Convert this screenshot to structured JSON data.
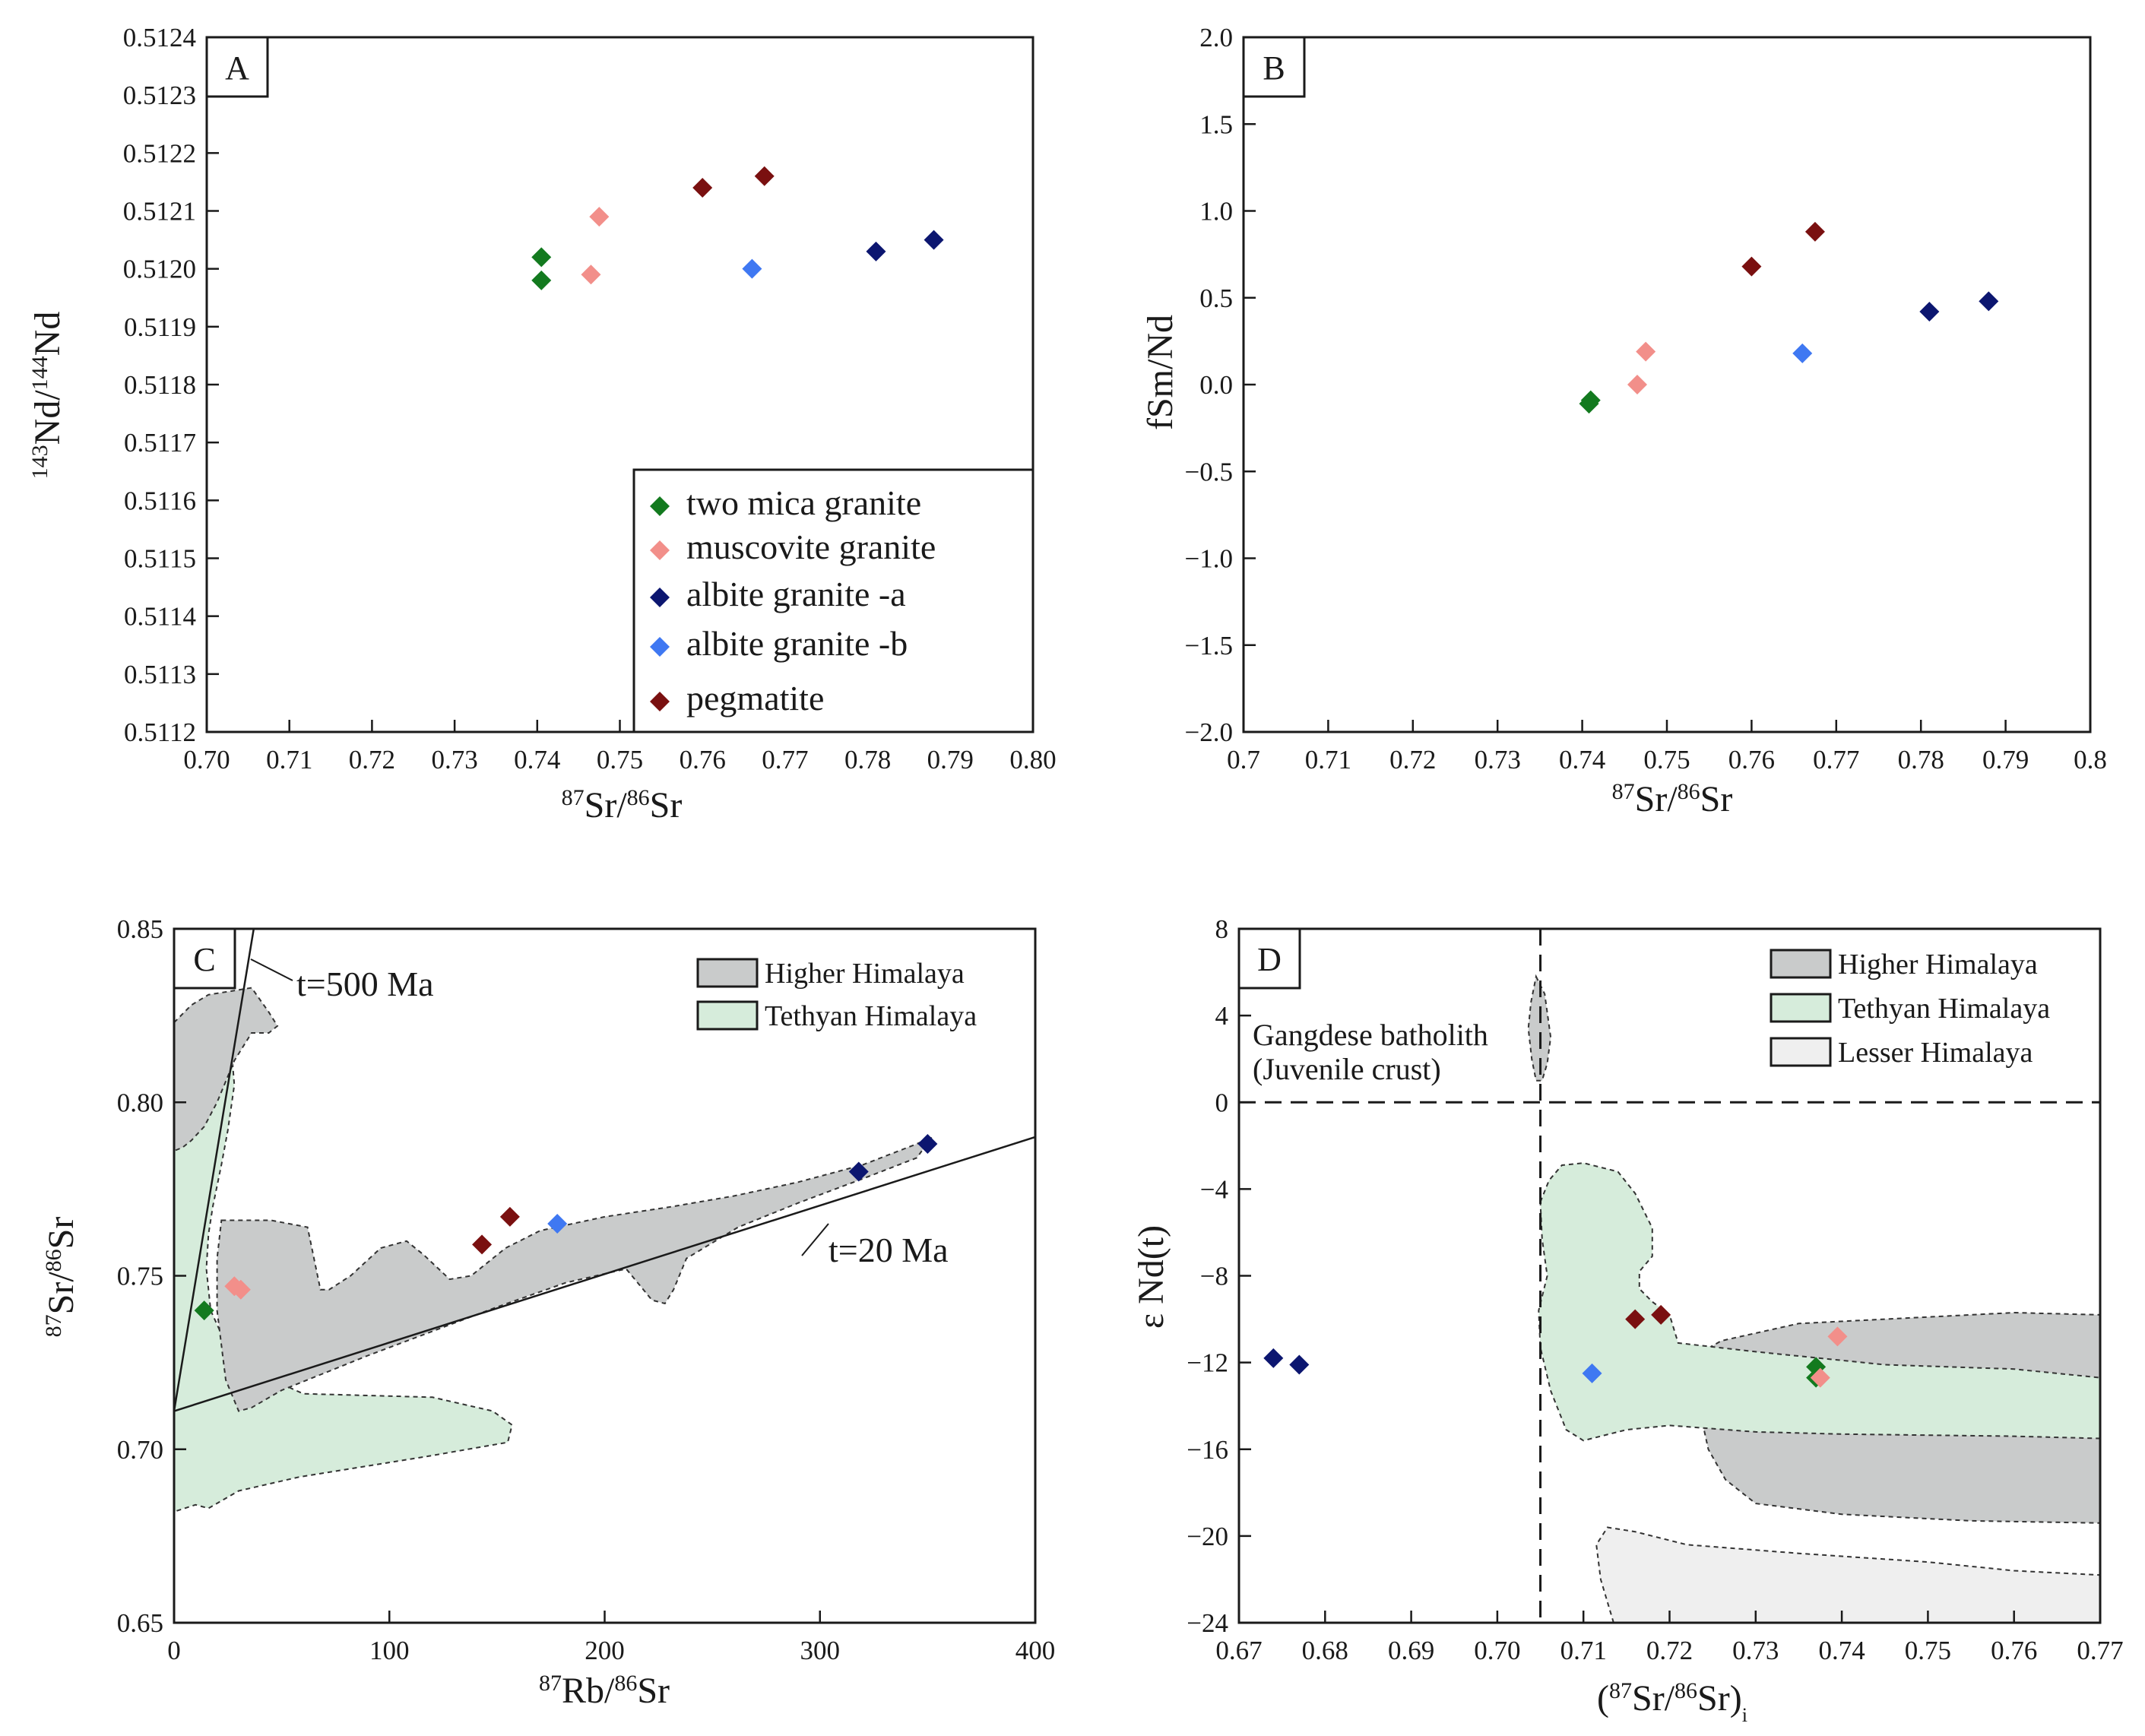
{
  "colors": {
    "two_mica": "#137a1f",
    "muscovite": "#f28f8a",
    "albite_a": "#0c1670",
    "albite_b": "#3f78f2",
    "pegmatite": "#7a1010",
    "higher_himalaya_fill": "#c9cbcb",
    "tethyan_himalaya_fill": "#d6ecdb",
    "lesser_himalaya_fill": "#efefef"
  },
  "chart_data": [
    {
      "panel": "A",
      "type": "scatter",
      "xlabel": {
        "sup1": "87",
        "t1": "Sr/",
        "sup2": "86",
        "t2": "Sr"
      },
      "ylabel": {
        "sup1": "143",
        "t1": "Nd/",
        "sup2": "144",
        "t2": "Nd"
      },
      "xlim": [
        0.7,
        0.8
      ],
      "ylim": [
        0.5112,
        0.5124
      ],
      "xticks": [
        "0.70",
        "0.71",
        "0.72",
        "0.73",
        "0.74",
        "0.75",
        "0.76",
        "0.77",
        "0.78",
        "0.79",
        "0.80"
      ],
      "yticks": [
        "0.5112",
        "0.5113",
        "0.5114",
        "0.5115",
        "0.5116",
        "0.5117",
        "0.5118",
        "0.5119",
        "0.5120",
        "0.5121",
        "0.5122",
        "0.5123",
        "0.5124"
      ],
      "legend_position": "bottom-right",
      "series": [
        {
          "name": "two mica granite",
          "color_key": "two_mica",
          "points": [
            [
              0.7405,
              0.51202
            ],
            [
              0.7405,
              0.51198
            ]
          ]
        },
        {
          "name": "muscovite granite",
          "color_key": "muscovite",
          "points": [
            [
              0.7475,
              0.51209
            ],
            [
              0.7465,
              0.51199
            ]
          ]
        },
        {
          "name": "albite granite -a",
          "color_key": "albite_a",
          "points": [
            [
              0.781,
              0.51203
            ],
            [
              0.788,
              0.51205
            ]
          ]
        },
        {
          "name": "albite granite -b",
          "color_key": "albite_b",
          "points": [
            [
              0.766,
              0.512
            ]
          ]
        },
        {
          "name": "pegmatite",
          "color_key": "pegmatite",
          "points": [
            [
              0.76,
              0.51214
            ],
            [
              0.7675,
              0.51216
            ]
          ]
        }
      ]
    },
    {
      "panel": "B",
      "type": "scatter",
      "xlabel": {
        "sup1": "87",
        "t1": "Sr/",
        "sup2": "86",
        "t2": "Sr"
      },
      "ylabel": "fSm/Nd",
      "xlim": [
        0.7,
        0.8
      ],
      "ylim": [
        -2.0,
        2.0
      ],
      "xticks": [
        "0.7",
        "0.71",
        "0.72",
        "0.73",
        "0.74",
        "0.75",
        "0.76",
        "0.77",
        "0.78",
        "0.79",
        "0.8"
      ],
      "yticks": [
        "−2.0",
        "−1.5",
        "−1.0",
        "−0.5",
        "0.0",
        "0.5",
        "1.0",
        "1.5",
        "2.0"
      ],
      "series": [
        {
          "name": "two mica granite",
          "color_key": "two_mica",
          "points": [
            [
              0.741,
              -0.09
            ],
            [
              0.7408,
              -0.11
            ]
          ]
        },
        {
          "name": "muscovite granite",
          "color_key": "muscovite",
          "points": [
            [
              0.7475,
              0.19
            ],
            [
              0.7465,
              0.0
            ]
          ]
        },
        {
          "name": "albite granite -a",
          "color_key": "albite_a",
          "points": [
            [
              0.781,
              0.42
            ],
            [
              0.788,
              0.48
            ]
          ]
        },
        {
          "name": "albite granite -b",
          "color_key": "albite_b",
          "points": [
            [
              0.766,
              0.18
            ]
          ]
        },
        {
          "name": "pegmatite",
          "color_key": "pegmatite",
          "points": [
            [
              0.76,
              0.68
            ],
            [
              0.7675,
              0.88
            ]
          ]
        }
      ]
    },
    {
      "panel": "C",
      "type": "scatter",
      "xlabel": {
        "sup1": "87",
        "t1": "Rb/",
        "sup2": "86",
        "t2": "Sr"
      },
      "ylabel": {
        "sup1": "87",
        "t1": "Sr/",
        "sup2": "86",
        "t2": "Sr"
      },
      "xlim": [
        0,
        400
      ],
      "ylim": [
        0.65,
        0.85
      ],
      "xticks": [
        "0",
        "100",
        "200",
        "300",
        "400"
      ],
      "yticks": [
        "0.65",
        "0.70",
        "0.75",
        "0.80",
        "0.85"
      ],
      "legend": [
        "Higher Himalaya",
        "Tethyan Himalaya"
      ],
      "legend_position": "top-right",
      "isochrons": [
        {
          "label": "t=500 Ma",
          "from": [
            0,
            0.711
          ],
          "to": [
            37,
            0.85
          ]
        },
        {
          "label": "t=20 Ma",
          "from": [
            0,
            0.711
          ],
          "to": [
            400,
            0.79
          ]
        }
      ],
      "regions": [
        {
          "name": "Tethyan Himalaya",
          "fill_key": "tethyan_himalaya_fill",
          "polygon": [
            [
              0,
              0.79
            ],
            [
              5,
              0.8
            ],
            [
              12,
              0.815
            ],
            [
              17,
              0.825
            ],
            [
              22,
              0.828
            ],
            [
              26,
              0.82
            ],
            [
              28,
              0.805
            ],
            [
              25,
              0.792
            ],
            [
              22,
              0.782
            ],
            [
              18,
              0.77
            ],
            [
              16,
              0.762
            ],
            [
              15,
              0.752
            ],
            [
              17,
              0.74
            ],
            [
              28,
              0.725
            ],
            [
              60,
              0.716
            ],
            [
              120,
              0.715
            ],
            [
              148,
              0.711
            ],
            [
              157,
              0.707
            ],
            [
              155,
              0.702
            ],
            [
              118,
              0.698
            ],
            [
              58,
              0.692
            ],
            [
              30,
              0.688
            ],
            [
              16,
              0.683
            ],
            [
              10,
              0.684
            ],
            [
              0,
              0.682
            ]
          ]
        },
        {
          "name": "Higher Himalaya",
          "fill_key": "higher_himalaya_fill",
          "polygon": [
            [
              0,
              0.823
            ],
            [
              8,
              0.828
            ],
            [
              16,
              0.831
            ],
            [
              26,
              0.832
            ],
            [
              36,
              0.833
            ],
            [
              44,
              0.826
            ],
            [
              48,
              0.822
            ],
            [
              44,
              0.82
            ],
            [
              36,
              0.82
            ],
            [
              28,
              0.812
            ],
            [
              20,
              0.8
            ],
            [
              14,
              0.793
            ],
            [
              8,
              0.789
            ],
            [
              4,
              0.787
            ],
            [
              0,
              0.786
            ]
          ]
        },
        {
          "name": "Higher Himalaya",
          "fill_key": "higher_himalaya_fill",
          "polygon": [
            [
              22,
              0.766
            ],
            [
              45,
              0.766
            ],
            [
              62,
              0.764
            ],
            [
              68,
              0.746
            ],
            [
              72,
              0.746
            ],
            [
              82,
              0.75
            ],
            [
              96,
              0.758
            ],
            [
              108,
              0.76
            ],
            [
              116,
              0.756
            ],
            [
              128,
              0.749
            ],
            [
              138,
              0.75
            ],
            [
              154,
              0.758
            ],
            [
              170,
              0.763
            ],
            [
              200,
              0.767
            ],
            [
              232,
              0.77
            ],
            [
              260,
              0.773
            ],
            [
              290,
              0.777
            ],
            [
              320,
              0.782
            ],
            [
              345,
              0.788
            ],
            [
              352,
              0.79
            ],
            [
              345,
              0.784
            ],
            [
              320,
              0.778
            ],
            [
              290,
              0.771
            ],
            [
              262,
              0.764
            ],
            [
              238,
              0.755
            ],
            [
              232,
              0.746
            ],
            [
              228,
              0.742
            ],
            [
              222,
              0.743
            ],
            [
              210,
              0.752
            ],
            [
              182,
              0.748
            ],
            [
              150,
              0.741
            ],
            [
              120,
              0.734
            ],
            [
              90,
              0.727
            ],
            [
              70,
              0.722
            ],
            [
              50,
              0.717
            ],
            [
              36,
              0.712
            ],
            [
              30,
              0.711
            ],
            [
              24,
              0.72
            ],
            [
              20,
              0.74
            ],
            [
              20,
              0.755
            ]
          ]
        }
      ],
      "series": [
        {
          "name": "two mica granite",
          "color_key": "two_mica",
          "points": [
            [
              14,
              0.74
            ]
          ]
        },
        {
          "name": "muscovite granite",
          "color_key": "muscovite",
          "points": [
            [
              28,
              0.747
            ],
            [
              31,
              0.746
            ]
          ]
        },
        {
          "name": "albite granite -a",
          "color_key": "albite_a",
          "points": [
            [
              318,
              0.78
            ],
            [
              350,
              0.788
            ]
          ]
        },
        {
          "name": "albite granite -b",
          "color_key": "albite_b",
          "points": [
            [
              178,
              0.765
            ]
          ]
        },
        {
          "name": "pegmatite",
          "color_key": "pegmatite",
          "points": [
            [
              143,
              0.759
            ],
            [
              156,
              0.767
            ]
          ]
        }
      ]
    },
    {
      "panel": "D",
      "type": "scatter",
      "xlabel": {
        "open": "(",
        "sup1": "87",
        "t1": "Sr/",
        "sup2": "86",
        "t2": "Sr)",
        "sub": "i"
      },
      "ylabel": "ε Nd(t)",
      "xlim": [
        0.67,
        0.77
      ],
      "ylim": [
        -24,
        8
      ],
      "xticks": [
        "0.67",
        "0.68",
        "0.69",
        "0.70",
        "0.71",
        "0.72",
        "0.73",
        "0.74",
        "0.75",
        "0.76",
        "0.77"
      ],
      "yticks": [
        "−24",
        "−20",
        "−16",
        "−12",
        "−8",
        "−4",
        "0",
        "4",
        "8"
      ],
      "legend": [
        "Higher Himalaya",
        "Tethyan Himalaya",
        "Lesser Himalaya"
      ],
      "legend_position": "top-right",
      "reference_lines": {
        "vertical_x": 0.705,
        "horizontal_y": 0
      },
      "annotations": [
        "Gangdese batholith",
        "(Juvenile crust)"
      ],
      "regions": [
        {
          "name": "Gangdese batholith",
          "fill_key": "higher_himalaya_fill",
          "polygon": [
            [
              0.7045,
              5.8
            ],
            [
              0.7055,
              5.0
            ],
            [
              0.7062,
              3.0
            ],
            [
              0.7058,
              1.8
            ],
            [
              0.7052,
              1.0
            ],
            [
              0.7045,
              1.0
            ],
            [
              0.704,
              2.0
            ],
            [
              0.7036,
              3.4
            ],
            [
              0.7039,
              4.6
            ]
          ]
        },
        {
          "name": "Lesser Himalaya",
          "fill_key": "lesser_himalaya_fill",
          "polygon": [
            [
              0.7135,
              -24
            ],
            [
              0.712,
              -22
            ],
            [
              0.7115,
              -20.4
            ],
            [
              0.7128,
              -19.6
            ],
            [
              0.716,
              -19.8
            ],
            [
              0.722,
              -20.4
            ],
            [
              0.735,
              -20.8
            ],
            [
              0.75,
              -21.2
            ],
            [
              0.76,
              -21.6
            ],
            [
              0.77,
              -21.8
            ],
            [
              0.77,
              -24
            ]
          ]
        },
        {
          "name": "Higher Himalaya",
          "fill_key": "higher_himalaya_fill",
          "polygon": [
            [
              0.722,
              -11.9
            ],
            [
              0.726,
              -11.0
            ],
            [
              0.735,
              -10.2
            ],
            [
              0.745,
              -10.0
            ],
            [
              0.76,
              -9.7
            ],
            [
              0.77,
              -9.8
            ],
            [
              0.77,
              -19.4
            ],
            [
              0.755,
              -19.3
            ],
            [
              0.74,
              -19.0
            ],
            [
              0.73,
              -18.5
            ],
            [
              0.7265,
              -17.4
            ],
            [
              0.7245,
              -16.0
            ],
            [
              0.7235,
              -14.2
            ],
            [
              0.724,
              -13.0
            ]
          ]
        },
        {
          "name": "Tethyan Himalaya",
          "fill_key": "tethyan_himalaya_fill",
          "polygon": [
            [
              0.705,
              -4.6
            ],
            [
              0.706,
              -3.6
            ],
            [
              0.7075,
              -2.9
            ],
            [
              0.71,
              -2.8
            ],
            [
              0.714,
              -3.2
            ],
            [
              0.716,
              -4.2
            ],
            [
              0.718,
              -5.8
            ],
            [
              0.718,
              -7.1
            ],
            [
              0.7165,
              -7.8
            ],
            [
              0.7165,
              -8.6
            ],
            [
              0.718,
              -9.2
            ],
            [
              0.72,
              -9.8
            ],
            [
              0.721,
              -11.1
            ],
            [
              0.73,
              -11.5
            ],
            [
              0.745,
              -12.1
            ],
            [
              0.76,
              -12.3
            ],
            [
              0.77,
              -12.7
            ],
            [
              0.77,
              -15.5
            ],
            [
              0.76,
              -15.4
            ],
            [
              0.74,
              -15.3
            ],
            [
              0.73,
              -15.2
            ],
            [
              0.72,
              -14.9
            ],
            [
              0.715,
              -15.1
            ],
            [
              0.71,
              -15.6
            ],
            [
              0.708,
              -15.1
            ],
            [
              0.7062,
              -13.3
            ],
            [
              0.705,
              -11.3
            ],
            [
              0.7048,
              -9.6
            ],
            [
              0.7058,
              -8.0
            ],
            [
              0.7052,
              -6.3
            ]
          ]
        }
      ],
      "series": [
        {
          "name": "two mica granite",
          "color_key": "two_mica",
          "points": [
            [
              0.737,
              -12.2
            ],
            [
              0.737,
              -12.7
            ]
          ]
        },
        {
          "name": "muscovite granite",
          "color_key": "muscovite",
          "points": [
            [
              0.7395,
              -10.8
            ],
            [
              0.7375,
              -12.7
            ]
          ]
        },
        {
          "name": "albite granite -a",
          "color_key": "albite_a",
          "points": [
            [
              0.674,
              -11.8
            ],
            [
              0.677,
              -12.1
            ]
          ]
        },
        {
          "name": "albite granite -b",
          "color_key": "albite_b",
          "points": [
            [
              0.711,
              -12.5
            ]
          ]
        },
        {
          "name": "pegmatite",
          "color_key": "pegmatite",
          "points": [
            [
              0.716,
              -10.0
            ],
            [
              0.719,
              -9.8
            ]
          ]
        }
      ]
    }
  ]
}
